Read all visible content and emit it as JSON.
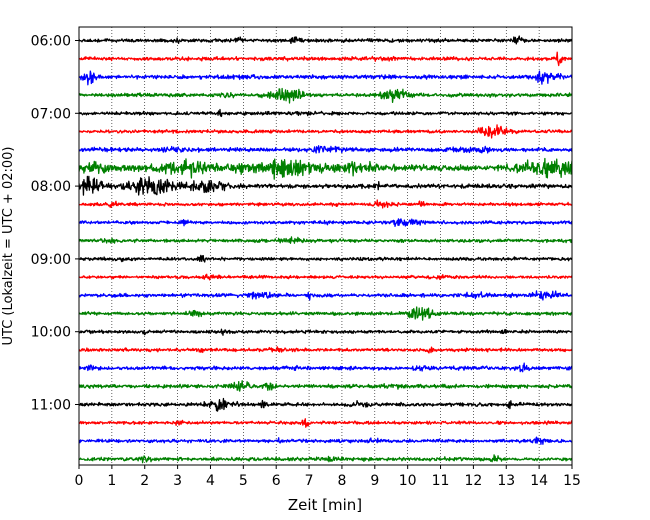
{
  "chart_data": {
    "type": "line",
    "xlabel": "Zeit  [min]",
    "ylabel": "UTC (Lokalzeit = UTC + 02:00)",
    "xlim": [
      0,
      15
    ],
    "x_ticks": [
      "0",
      "1",
      "2",
      "3",
      "4",
      "5",
      "6",
      "7",
      "8",
      "9",
      "10",
      "11",
      "12",
      "13",
      "14",
      "15"
    ],
    "y_ticks": [
      "06:00",
      "07:00",
      "08:00",
      "09:00",
      "10:00",
      "11:00"
    ],
    "grid": "vertical-dotted",
    "trace_colors": [
      "#000000",
      "#ff0000",
      "#0000ff",
      "#008000"
    ],
    "traces": [
      {
        "start": "06:00",
        "color": "#000000",
        "noise": 1.0,
        "bursts": [
          [
            1.4,
            0.4,
            0.18
          ],
          [
            3.0,
            2.5,
            0.03
          ],
          [
            4.9,
            1.8,
            0.08
          ],
          [
            6.6,
            1.2,
            0.12
          ],
          [
            13.3,
            1.8,
            0.1
          ]
        ]
      },
      {
        "start": "06:15",
        "color": "#ff0000",
        "noise": 1.0,
        "bursts": [
          [
            14.6,
            3.0,
            0.1
          ],
          [
            9.0,
            0.8,
            0.3
          ]
        ]
      },
      {
        "start": "06:30",
        "color": "#0000ff",
        "noise": 1.1,
        "bursts": [
          [
            0.3,
            3.2,
            0.15
          ],
          [
            14.2,
            3.2,
            0.25
          ],
          [
            5.0,
            0.9,
            0.25
          ]
        ]
      },
      {
        "start": "06:45",
        "color": "#008000",
        "noise": 1.0,
        "bursts": [
          [
            6.3,
            4.5,
            0.3
          ],
          [
            9.6,
            3.0,
            0.3
          ],
          [
            4.4,
            1.0,
            0.2
          ]
        ]
      },
      {
        "start": "07:00",
        "color": "#000000",
        "noise": 0.9,
        "bursts": [
          [
            4.3,
            1.8,
            0.04
          ],
          [
            6.9,
            0.8,
            0.2
          ]
        ]
      },
      {
        "start": "07:15",
        "color": "#ff0000",
        "noise": 0.9,
        "bursts": [
          [
            12.6,
            3.0,
            0.3
          ]
        ]
      },
      {
        "start": "07:30",
        "color": "#0000ff",
        "noise": 1.1,
        "bursts": [
          [
            7.5,
            1.8,
            0.35
          ],
          [
            3.1,
            1.2,
            0.3
          ],
          [
            11.9,
            1.2,
            0.4
          ]
        ]
      },
      {
        "start": "07:45",
        "color": "#008000",
        "noise": 1.7,
        "bursts": [
          [
            3.3,
            3.5,
            0.55
          ],
          [
            6.4,
            4.8,
            0.6
          ],
          [
            14.4,
            4.5,
            0.6
          ],
          [
            0.5,
            2.0,
            0.35
          ],
          [
            4.9,
            2.0,
            0.3
          ],
          [
            8.5,
            2.0,
            0.4
          ]
        ]
      },
      {
        "start": "08:00",
        "color": "#000000",
        "noise": 1.2,
        "bursts": [
          [
            0.35,
            5.0,
            0.3
          ],
          [
            2.2,
            5.0,
            0.45
          ],
          [
            3.9,
            2.8,
            0.35
          ],
          [
            9.1,
            1.6,
            0.05
          ]
        ]
      },
      {
        "start": "08:15",
        "color": "#ff0000",
        "noise": 0.9,
        "bursts": [
          [
            9.2,
            1.5,
            0.2
          ],
          [
            10.4,
            1.6,
            0.08
          ],
          [
            1.0,
            0.8,
            0.2
          ]
        ]
      },
      {
        "start": "08:30",
        "color": "#0000ff",
        "noise": 0.9,
        "bursts": [
          [
            3.2,
            1.6,
            0.1
          ],
          [
            7.5,
            1.5,
            0.06
          ],
          [
            10.0,
            2.0,
            0.3
          ]
        ]
      },
      {
        "start": "08:45",
        "color": "#008000",
        "noise": 0.9,
        "bursts": [
          [
            6.5,
            1.5,
            0.2
          ],
          [
            1.0,
            0.8,
            0.2
          ]
        ]
      },
      {
        "start": "09:00",
        "color": "#000000",
        "noise": 0.9,
        "bursts": [
          [
            3.7,
            2.5,
            0.08
          ],
          [
            1.3,
            1.4,
            0.04
          ]
        ]
      },
      {
        "start": "09:15",
        "color": "#ff0000",
        "noise": 0.8,
        "bursts": [
          [
            4.0,
            0.8,
            0.2
          ],
          [
            11.0,
            0.8,
            0.2
          ]
        ]
      },
      {
        "start": "09:30",
        "color": "#0000ff",
        "noise": 1.0,
        "bursts": [
          [
            5.5,
            1.8,
            0.25
          ],
          [
            7.0,
            1.8,
            0.06
          ],
          [
            14.2,
            2.5,
            0.25
          ],
          [
            12.0,
            1.0,
            0.2
          ]
        ]
      },
      {
        "start": "09:45",
        "color": "#008000",
        "noise": 0.9,
        "bursts": [
          [
            10.4,
            3.2,
            0.25
          ],
          [
            3.5,
            0.9,
            0.2
          ]
        ]
      },
      {
        "start": "10:00",
        "color": "#000000",
        "noise": 0.9,
        "bursts": [
          [
            4.4,
            1.8,
            0.04
          ],
          [
            2.0,
            1.0,
            0.05
          ],
          [
            13.0,
            0.9,
            0.05
          ]
        ]
      },
      {
        "start": "10:15",
        "color": "#ff0000",
        "noise": 0.9,
        "bursts": [
          [
            3.7,
            1.5,
            0.04
          ],
          [
            10.7,
            1.6,
            0.06
          ],
          [
            6.0,
            0.8,
            0.2
          ]
        ]
      },
      {
        "start": "10:30",
        "color": "#0000ff",
        "noise": 1.0,
        "bursts": [
          [
            0.3,
            1.5,
            0.1
          ],
          [
            6.6,
            1.4,
            0.08
          ],
          [
            13.5,
            1.8,
            0.1
          ],
          [
            10.5,
            0.8,
            0.2
          ]
        ]
      },
      {
        "start": "10:45",
        "color": "#008000",
        "noise": 1.0,
        "bursts": [
          [
            4.9,
            1.8,
            0.25
          ],
          [
            5.8,
            2.0,
            0.1
          ],
          [
            9.5,
            1.0,
            0.2
          ]
        ]
      },
      {
        "start": "11:00",
        "color": "#000000",
        "noise": 1.0,
        "bursts": [
          [
            4.3,
            3.2,
            0.25
          ],
          [
            5.6,
            2.0,
            0.06
          ],
          [
            13.1,
            1.6,
            0.04
          ],
          [
            8.5,
            0.9,
            0.2
          ]
        ]
      },
      {
        "start": "11:15",
        "color": "#ff0000",
        "noise": 0.9,
        "bursts": [
          [
            6.9,
            1.6,
            0.08
          ],
          [
            3.0,
            0.8,
            0.2
          ]
        ]
      },
      {
        "start": "11:30",
        "color": "#0000ff",
        "noise": 0.9,
        "bursts": [
          [
            6.1,
            1.8,
            0.04
          ],
          [
            14.0,
            1.3,
            0.2
          ],
          [
            9.0,
            0.8,
            0.2
          ]
        ]
      },
      {
        "start": "11:45",
        "color": "#008000",
        "noise": 1.0,
        "bursts": [
          [
            12.7,
            1.6,
            0.1
          ],
          [
            2.0,
            0.9,
            0.2
          ],
          [
            7.6,
            0.9,
            0.2
          ]
        ]
      }
    ]
  }
}
